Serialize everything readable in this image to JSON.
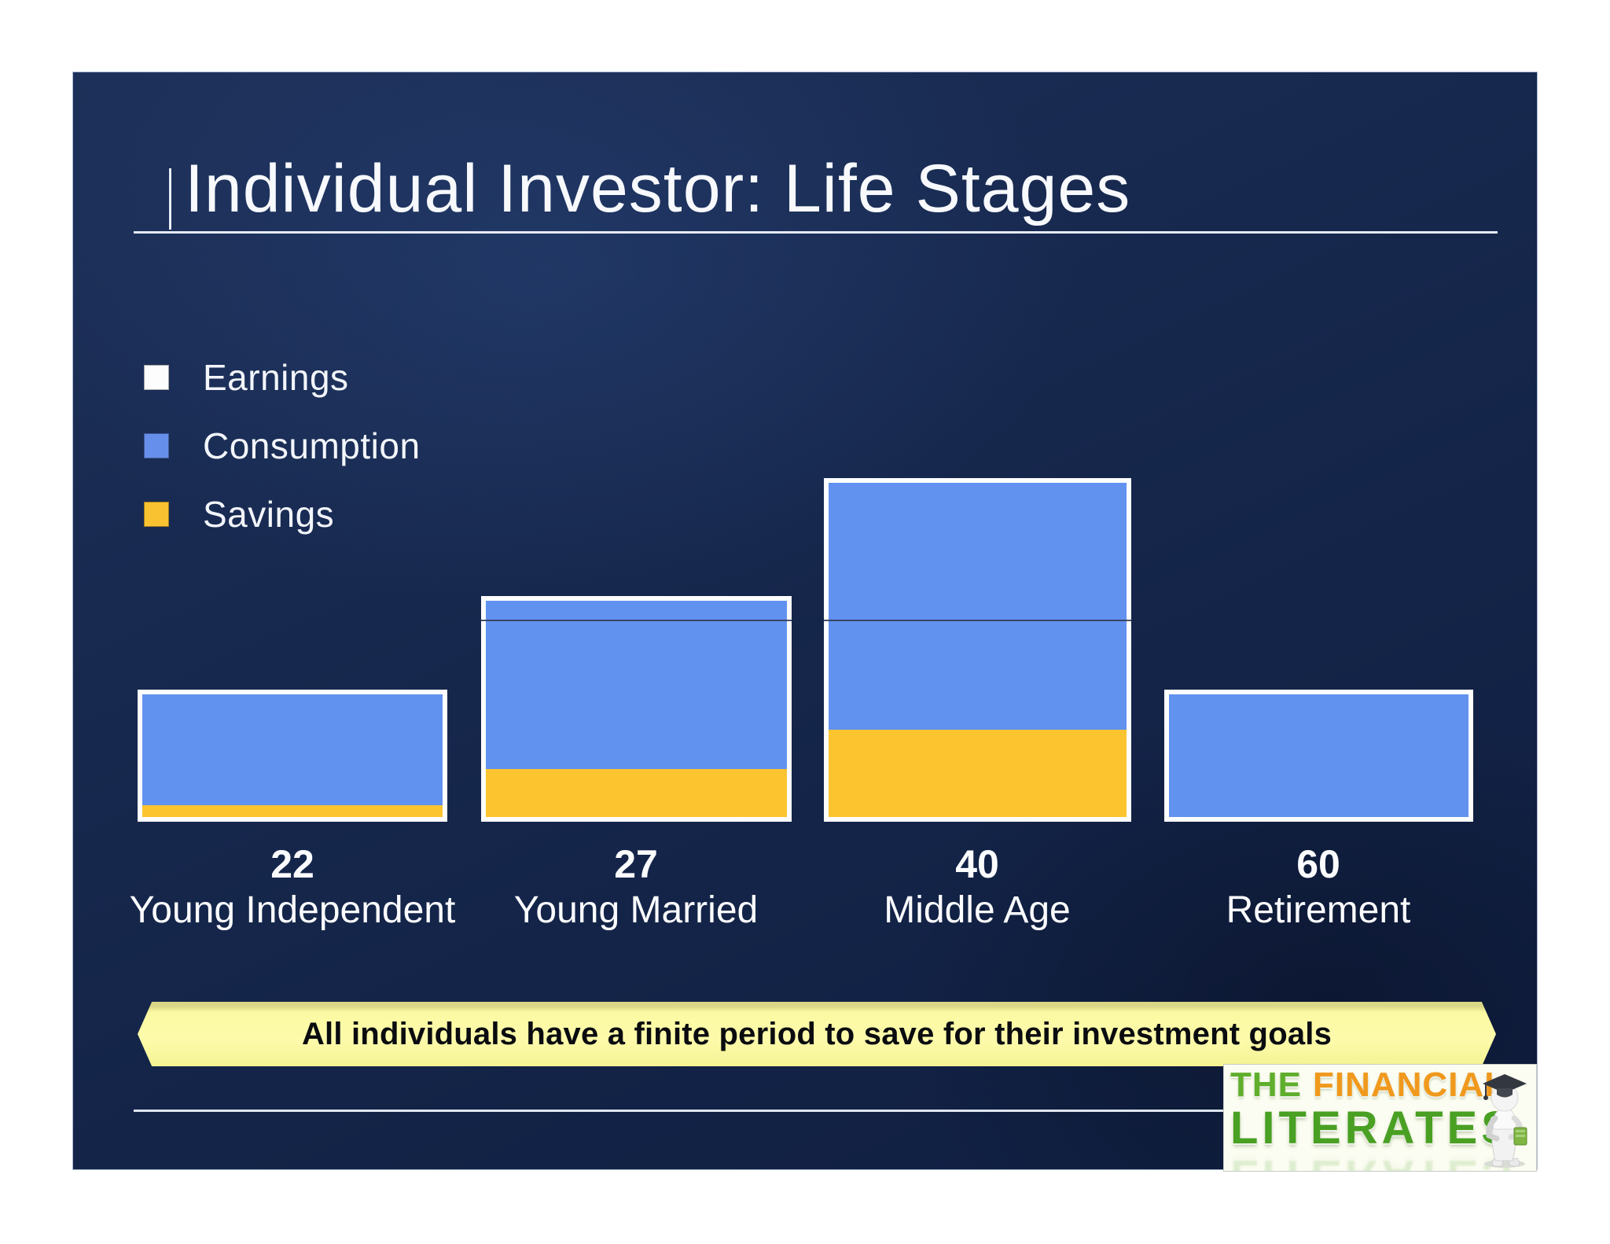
{
  "slide": {
    "title": "Individual Investor: Life Stages",
    "legend": [
      {
        "label": "Earnings",
        "color": "#fdfdfe"
      },
      {
        "label": "Consumption",
        "color": "#668fec"
      },
      {
        "label": "Savings",
        "color": "#f9c230"
      }
    ],
    "banner_text": "All individuals have a finite period to save for their investment goals",
    "logo": {
      "word_the": "THE",
      "word_financial": "FINANCIAL",
      "word_literates": "LITERATES",
      "mascot_icon": "graduate-figure-icon"
    }
  },
  "chart_data": {
    "type": "bar",
    "stacked": true,
    "title": "Individual Investor: Life Stages",
    "categories": [
      {
        "age": "22",
        "stage": "Young Independent"
      },
      {
        "age": "27",
        "stage": "Young Married"
      },
      {
        "age": "40",
        "stage": "Middle Age"
      },
      {
        "age": "60",
        "stage": "Retirement"
      }
    ],
    "series": [
      {
        "name": "Savings",
        "color": "#fcc42f",
        "values": [
          3.4,
          14.0,
          25.4,
          0
        ]
      },
      {
        "name": "Consumption",
        "color": "#6292f0",
        "values": [
          35.0,
          51.7,
          74.6,
          38.4
        ]
      }
    ],
    "earnings_totals": [
      38.4,
      65.7,
      100.0,
      38.4
    ],
    "units": "relative income (Middle Age earnings = 100)",
    "gridline_value": 58.4,
    "ylim": [
      0,
      100
    ],
    "grid": false,
    "legend_position": "upper-left"
  }
}
